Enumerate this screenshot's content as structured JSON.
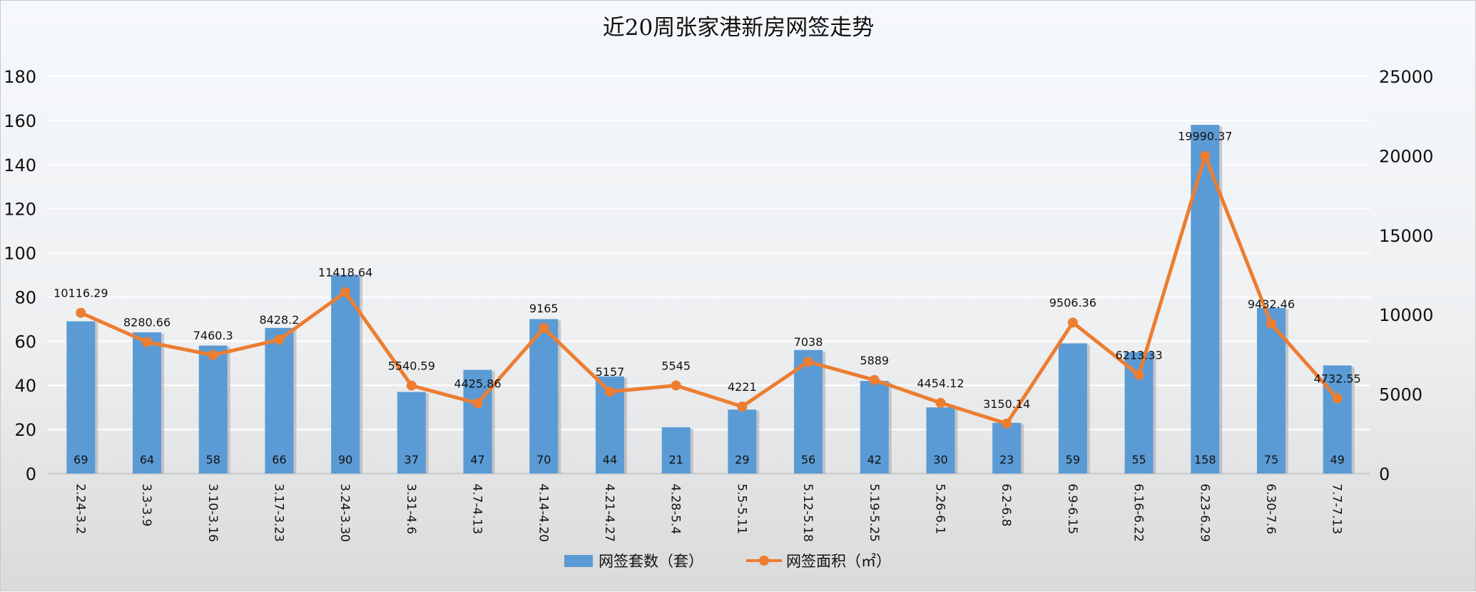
{
  "chart_data": {
    "type": "bar+line",
    "title": "近20周张家港新房网签走势",
    "categories": [
      "2.24-3.2",
      "3.3-3.9",
      "3.10-3.16",
      "3.17-3.23",
      "3.24-3.30",
      "3.31-4.6",
      "4.7-4.13",
      "4.14-4.20",
      "4.21-4.27",
      "4.28-5.4",
      "5.5-5.11",
      "5.12-5.18",
      "5.19-5.25",
      "5.26-6.1",
      "6.2-6.8",
      "6.9-6.15",
      "6.16-6.22",
      "6.23-6.29",
      "6.30-7.6",
      "7.7-7.13"
    ],
    "series": [
      {
        "name": "网签套数（套）",
        "type": "bar",
        "axis": "left",
        "color": "#5b9bd5",
        "values": [
          69,
          64,
          58,
          66,
          90,
          37,
          47,
          70,
          44,
          21,
          29,
          56,
          42,
          30,
          23,
          59,
          55,
          158,
          75,
          49
        ]
      },
      {
        "name": "网签面积（㎡）",
        "type": "line",
        "axis": "right",
        "color": "#ed7d31",
        "values": [
          10116.29,
          8280.66,
          7460.3,
          8428.2,
          11418.64,
          5540.59,
          4425.86,
          9165,
          5157,
          5545,
          4221,
          7038,
          5889,
          4454.12,
          3150.14,
          9506.36,
          6213.33,
          19990.37,
          9432.46,
          4732.55
        ]
      }
    ],
    "left_axis": {
      "min": 0,
      "max": 180,
      "step": 20,
      "ticks": [
        "0",
        "20",
        "40",
        "60",
        "80",
        "100",
        "120",
        "140",
        "160",
        "180"
      ]
    },
    "right_axis": {
      "min": 0,
      "max": 25000,
      "step": 5000,
      "ticks": [
        "0",
        "5000",
        "10000",
        "15000",
        "20000",
        "25000"
      ]
    },
    "grid": true,
    "legend": "bottom"
  }
}
